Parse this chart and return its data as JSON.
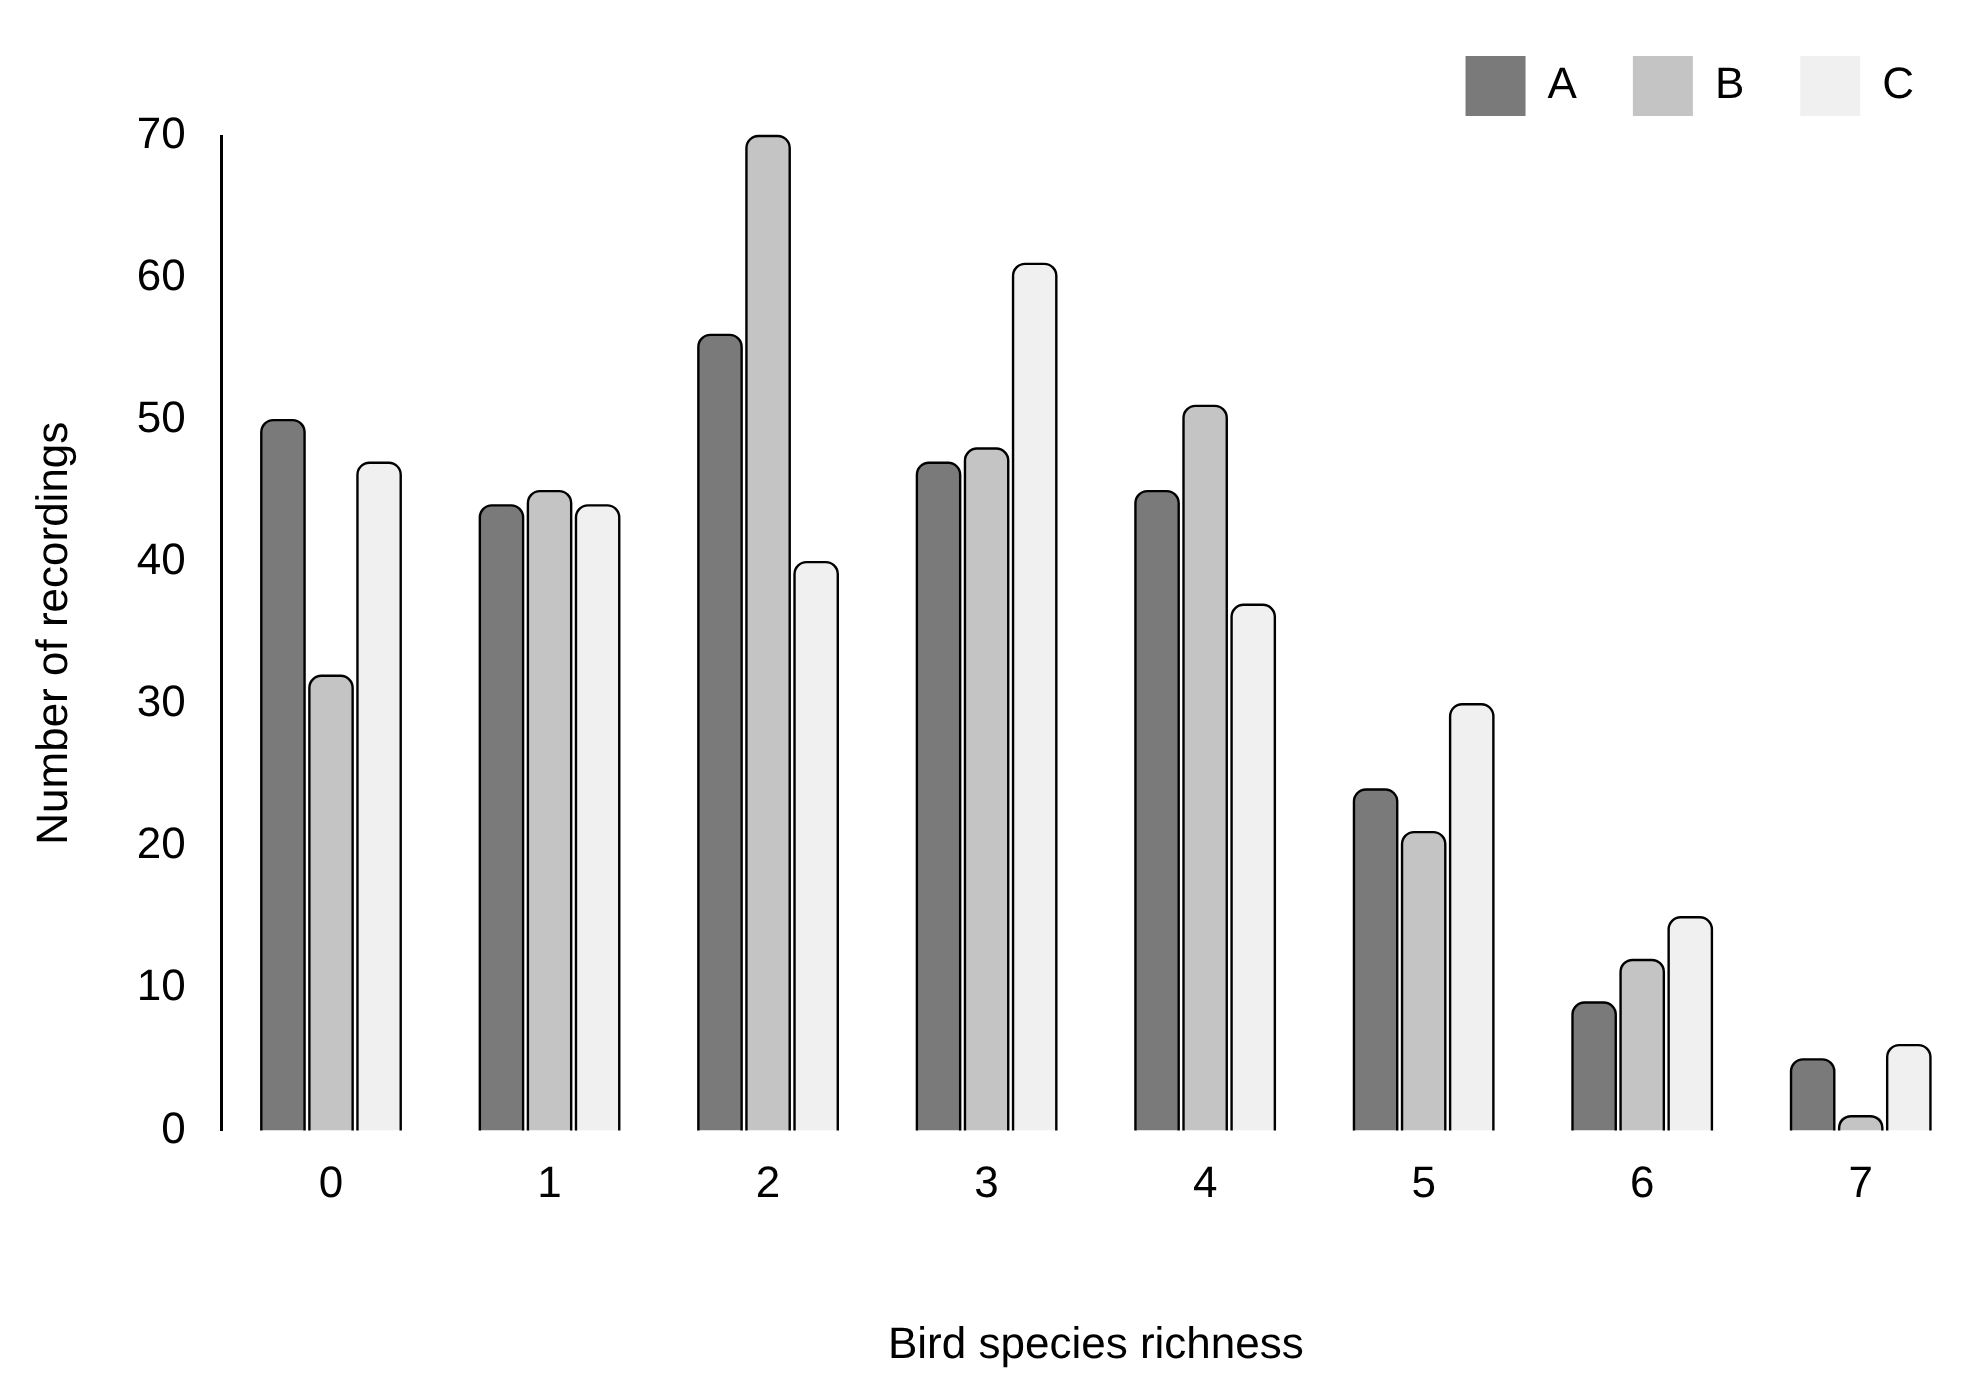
{
  "chart_data": {
    "type": "bar",
    "xlabel": "Bird species richness",
    "ylabel": "Number of recordings",
    "categories": [
      "0",
      "1",
      "2",
      "3",
      "4",
      "5",
      "6",
      "7"
    ],
    "series": [
      {
        "name": "A",
        "color": "#7a7a7a",
        "values": [
          50,
          44,
          56,
          47,
          45,
          24,
          9,
          5
        ]
      },
      {
        "name": "B",
        "color": "#c4c4c4",
        "values": [
          32,
          45,
          70,
          48,
          51,
          21,
          12,
          1
        ]
      },
      {
        "name": "C",
        "color": "#f0f0f0",
        "values": [
          47,
          44,
          40,
          61,
          37,
          30,
          15,
          6
        ]
      }
    ],
    "ylim": [
      0,
      70
    ],
    "yticks": [
      0,
      10,
      20,
      30,
      40,
      50,
      60,
      70
    ],
    "grid": false,
    "legend": "top right"
  }
}
